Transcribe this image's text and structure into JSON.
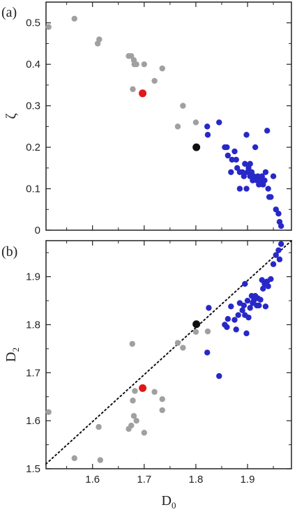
{
  "chart_data": [
    {
      "panel_label": "(a)",
      "type": "scatter",
      "ylabel": "ζ",
      "xlim": [
        1.51,
        1.985
      ],
      "ylim": [
        0,
        0.55
      ],
      "yticks": [
        "0",
        "0.1",
        "0.2",
        "0.3",
        "0.4",
        "0.5"
      ],
      "xticks": [
        1.6,
        1.7,
        1.8,
        1.9
      ],
      "x_tick_labels_shown": false,
      "series": [
        {
          "color": "#a0a0a0",
          "points": [
            [
              1.515,
              0.49
            ],
            [
              1.565,
              0.51
            ],
            [
              1.61,
              0.45
            ],
            [
              1.613,
              0.46
            ],
            [
              1.67,
              0.42
            ],
            [
              1.675,
              0.42
            ],
            [
              1.68,
              0.41
            ],
            [
              1.681,
              0.4
            ],
            [
              1.685,
              0.4
            ],
            [
              1.7,
              0.4
            ],
            [
              1.735,
              0.39
            ],
            [
              1.72,
              0.36
            ],
            [
              1.678,
              0.34
            ],
            [
              1.775,
              0.3
            ],
            [
              1.765,
              0.25
            ],
            [
              1.8,
              0.26
            ]
          ]
        },
        {
          "color": "#e01818",
          "points": [
            [
              1.697,
              0.33
            ]
          ]
        },
        {
          "color": "#101010",
          "points": [
            [
              1.801,
              0.2
            ]
          ]
        },
        {
          "color": "#2828c8",
          "points": [
            [
              1.822,
              0.25
            ],
            [
              1.823,
              0.23
            ],
            [
              1.845,
              0.26
            ],
            [
              1.856,
              0.2
            ],
            [
              1.86,
              0.2
            ],
            [
              1.862,
              0.18
            ],
            [
              1.868,
              0.14
            ],
            [
              1.875,
              0.19
            ],
            [
              1.878,
              0.17
            ],
            [
              1.88,
              0.15
            ],
            [
              1.885,
              0.14
            ],
            [
              1.89,
              0.14
            ],
            [
              1.893,
              0.13
            ],
            [
              1.895,
              0.16
            ],
            [
              1.898,
              0.23
            ],
            [
              1.9,
              0.14
            ],
            [
              1.902,
              0.15
            ],
            [
              1.905,
              0.13
            ],
            [
              1.908,
              0.14
            ],
            [
              1.91,
              0.12
            ],
            [
              1.912,
              0.13
            ],
            [
              1.915,
              0.2
            ],
            [
              1.918,
              0.12
            ],
            [
              1.92,
              0.13
            ],
            [
              1.922,
              0.11
            ],
            [
              1.925,
              0.12
            ],
            [
              1.928,
              0.13
            ],
            [
              1.93,
              0.11
            ],
            [
              1.933,
              0.12
            ],
            [
              1.935,
              0.14
            ],
            [
              1.938,
              0.24
            ],
            [
              1.94,
              0.1
            ],
            [
              1.942,
              0.08
            ],
            [
              1.945,
              0.08
            ],
            [
              1.95,
              0.13
            ],
            [
              1.955,
              0.05
            ],
            [
              1.96,
              0.04
            ],
            [
              1.962,
              0.02
            ],
            [
              1.965,
              0.01
            ],
            [
              1.898,
              0.1
            ],
            [
              1.885,
              0.1
            ],
            [
              1.87,
              0.17
            ],
            [
              1.905,
              0.16
            ]
          ]
        }
      ]
    },
    {
      "panel_label": "(b)",
      "type": "scatter",
      "xlabel": "D",
      "xlabel_sub": "0",
      "ylabel": "D",
      "ylabel_sub": "2",
      "xlim": [
        1.51,
        1.985
      ],
      "ylim": [
        1.5,
        1.975
      ],
      "xticks": [
        "1.6",
        "1.7",
        "1.8",
        "1.9"
      ],
      "yticks": [
        "1.5",
        "1.6",
        "1.7",
        "1.8",
        "1.9"
      ],
      "reference_line": {
        "style": "dotted",
        "from": [
          1.51,
          1.51
        ],
        "to": [
          1.985,
          1.985
        ]
      },
      "series": [
        {
          "color": "#a0a0a0",
          "points": [
            [
              1.515,
              1.618
            ],
            [
              1.565,
              1.522
            ],
            [
              1.612,
              1.587
            ],
            [
              1.615,
              1.518
            ],
            [
              1.67,
              1.583
            ],
            [
              1.675,
              1.59
            ],
            [
              1.678,
              1.642
            ],
            [
              1.68,
              1.61
            ],
            [
              1.685,
              1.6
            ],
            [
              1.682,
              1.662
            ],
            [
              1.7,
              1.575
            ],
            [
              1.72,
              1.66
            ],
            [
              1.735,
              1.622
            ],
            [
              1.677,
              1.76
            ],
            [
              1.735,
              1.645
            ],
            [
              1.765,
              1.762
            ],
            [
              1.775,
              1.752
            ],
            [
              1.8,
              1.785
            ],
            [
              1.823,
              1.786
            ]
          ]
        },
        {
          "color": "#e01818",
          "points": [
            [
              1.697,
              1.668
            ]
          ]
        },
        {
          "color": "#101010",
          "points": [
            [
              1.801,
              1.801
            ]
          ]
        },
        {
          "color": "#2828c8",
          "points": [
            [
              1.822,
              1.742
            ],
            [
              1.825,
              1.835
            ],
            [
              1.845,
              1.693
            ],
            [
              1.856,
              1.8
            ],
            [
              1.86,
              1.795
            ],
            [
              1.862,
              1.812
            ],
            [
              1.868,
              1.838
            ],
            [
              1.875,
              1.81
            ],
            [
              1.878,
              1.79
            ],
            [
              1.882,
              1.82
            ],
            [
              1.885,
              1.845
            ],
            [
              1.89,
              1.83
            ],
            [
              1.893,
              1.84
            ],
            [
              1.895,
              1.885
            ],
            [
              1.898,
              1.782
            ],
            [
              1.9,
              1.85
            ],
            [
              1.902,
              1.815
            ],
            [
              1.905,
              1.835
            ],
            [
              1.908,
              1.86
            ],
            [
              1.91,
              1.845
            ],
            [
              1.912,
              1.85
            ],
            [
              1.915,
              1.86
            ],
            [
              1.918,
              1.84
            ],
            [
              1.92,
              1.855
            ],
            [
              1.922,
              1.84
            ],
            [
              1.925,
              1.852
            ],
            [
              1.928,
              1.893
            ],
            [
              1.93,
              1.875
            ],
            [
              1.933,
              1.885
            ],
            [
              1.935,
              1.838
            ],
            [
              1.938,
              1.89
            ],
            [
              1.94,
              1.88
            ],
            [
              1.945,
              1.895
            ],
            [
              1.95,
              1.926
            ],
            [
              1.955,
              1.945
            ],
            [
              1.96,
              1.955
            ],
            [
              1.962,
              1.936
            ],
            [
              1.965,
              1.968
            ],
            [
              1.895,
              1.82
            ]
          ]
        }
      ]
    }
  ]
}
